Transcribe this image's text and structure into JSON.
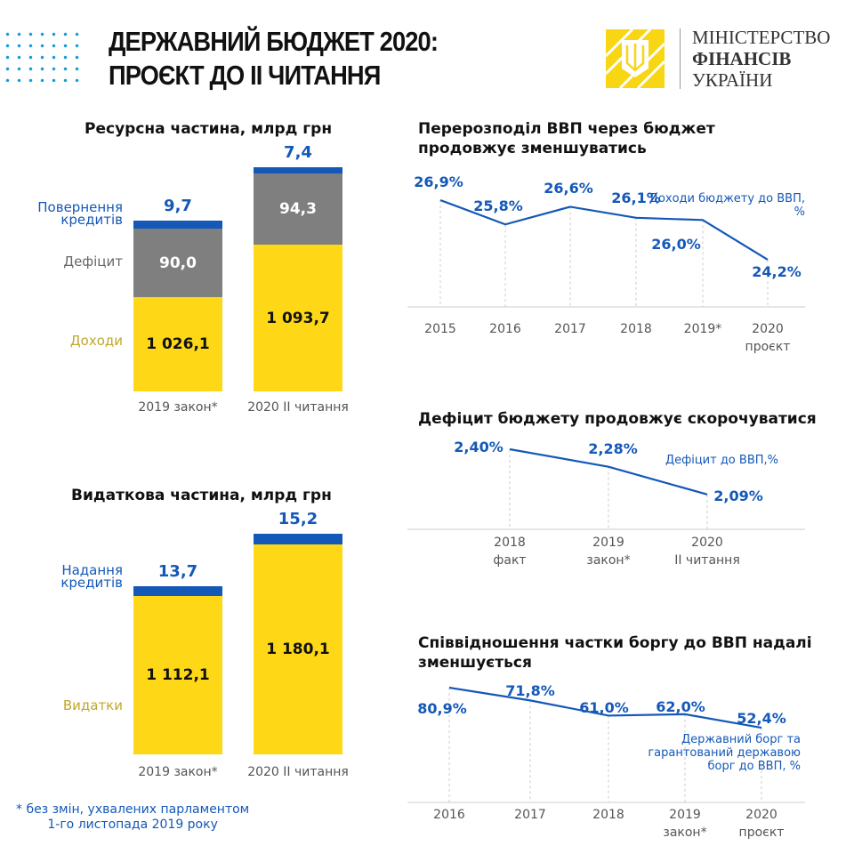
{
  "header": {
    "title_line1": "ДЕРЖАВНИЙ БЮДЖЕТ 2020:",
    "title_line2": "ПРОЄКТ ДО ІІ ЧИТАННЯ",
    "ministry": [
      "МІНІСТЕРСТВО",
      "ФІНАНСІВ",
      "УКРАЇНИ"
    ]
  },
  "colors": {
    "yellow": "#fed817",
    "gray": "#7f7f7f",
    "blue": "#1458b8",
    "revenue_label": "#c0a72a"
  },
  "footnote": [
    "* без змін, ухвалених парламентом",
    "1-го листопада 2019 року"
  ],
  "chart_data": [
    {
      "type": "bar",
      "stacked": true,
      "title": "Ресурсна частина, млрд грн",
      "categories": [
        "2019 закон*",
        "2020 ІІ читання"
      ],
      "series": [
        {
          "name": "Доходи",
          "values": [
            "1 026,1",
            "1 093,7"
          ],
          "color": "#fed817"
        },
        {
          "name": "Дефіцит",
          "values": [
            "90,0",
            "94,3"
          ],
          "color": "#7f7f7f"
        },
        {
          "name": "Повернення кредитів",
          "values": [
            "9,7",
            "7,4"
          ],
          "color": "#1458b8"
        }
      ]
    },
    {
      "type": "bar",
      "stacked": true,
      "title": "Видаткова частина, млрд грн",
      "categories": [
        "2019 закон*",
        "2020 ІІ читання"
      ],
      "series": [
        {
          "name": "Видатки",
          "values": [
            "1 112,1",
            "1 180,1"
          ],
          "color": "#fed817"
        },
        {
          "name": "Надання кредитів",
          "values": [
            "13,7",
            "15,2"
          ],
          "color": "#1458b8"
        }
      ]
    },
    {
      "type": "line",
      "title": "Перерозподіл ВВП через бюджет продовжує зменшуватись",
      "categories": [
        "2015",
        "2016",
        "2017",
        "2018",
        "2019*",
        "2020 проєкт"
      ],
      "series": [
        {
          "name": "Доходи бюджету до ВВП, %",
          "values": [
            26.9,
            25.8,
            26.6,
            26.1,
            26.0,
            24.2
          ],
          "labels": [
            "26,9%",
            "25,8%",
            "26,6%",
            "26,1%",
            "26,0%",
            "24,2%"
          ]
        }
      ]
    },
    {
      "type": "line",
      "title": "Дефіцит бюджету продовжує скорочуватися",
      "categories": [
        "2018 факт",
        "2019 закон*",
        "2020 ІІ читання"
      ],
      "series": [
        {
          "name": "Дефіцит до ВВП,%",
          "values": [
            2.4,
            2.28,
            2.09
          ],
          "labels": [
            "2,40%",
            "2,28%",
            "2,09%"
          ]
        }
      ]
    },
    {
      "type": "line",
      "title": "Співвідношення частки боргу до ВВП надалі зменшується",
      "categories": [
        "2016",
        "2017",
        "2018",
        "2019 закон*",
        "2020 проєкт"
      ],
      "series": [
        {
          "name": "Державний борг  та гарантований державою борг до ВВП, %",
          "values": [
            80.9,
            71.8,
            61.0,
            62.0,
            52.4
          ],
          "labels": [
            "80,9%",
            "71,8%",
            "61,0%",
            "62,0%",
            "52,4%"
          ]
        }
      ]
    }
  ]
}
